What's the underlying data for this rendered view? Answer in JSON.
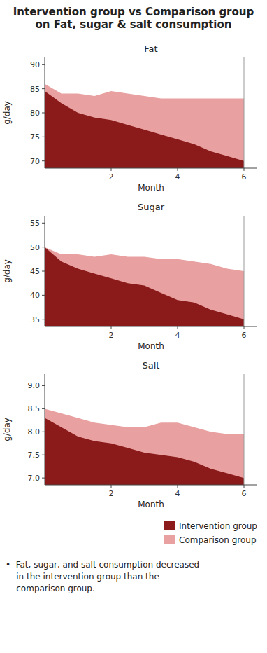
{
  "title": "Intervention group vs Comparison group\non Fat, sugar & salt consumption",
  "annotation": "•  Fat, sugar, and salt consumption decreased\n    in the intervention group than the\n    comparison group.",
  "chart_data": [
    {
      "type": "area",
      "title": "Fat",
      "x_label": "Month",
      "y_label": "g/day",
      "x": [
        0,
        0.5,
        1.0,
        1.5,
        2.0,
        2.5,
        3.0,
        3.5,
        4.0,
        4.5,
        5.0,
        5.5,
        6.0
      ],
      "series": [
        {
          "name": "Intervention group",
          "color": "#8B1A1A",
          "values": [
            84.5,
            82.0,
            80.0,
            79.0,
            78.5,
            77.5,
            76.5,
            75.5,
            74.5,
            73.5,
            72.0,
            71.0,
            70.0
          ]
        },
        {
          "name": "Comparison group",
          "color": "#E8A0A0",
          "values": [
            86.0,
            84.0,
            84.0,
            83.5,
            84.5,
            84.0,
            83.5,
            83.0,
            83.0,
            83.0,
            83.0,
            83.0,
            83.0
          ]
        }
      ],
      "vline_x": 6,
      "xlim": [
        0,
        6.4
      ],
      "xticks": [
        2,
        4,
        6
      ],
      "ylim": [
        68.5,
        91.5
      ],
      "yticks": [
        70,
        75,
        80,
        85,
        90
      ],
      "grid": false,
      "legend": "right"
    },
    {
      "type": "area",
      "title": "Sugar",
      "x_label": "Month",
      "y_label": "g/day",
      "x": [
        0,
        0.5,
        1.0,
        1.5,
        2.0,
        2.5,
        3.0,
        3.5,
        4.0,
        4.5,
        5.0,
        5.5,
        6.0
      ],
      "series": [
        {
          "color": "#8B1A1A",
          "values": [
            50.0,
            47.0,
            45.5,
            44.5,
            43.5,
            42.5,
            42.0,
            40.5,
            39.0,
            38.5,
            37.0,
            36.0,
            35.0
          ]
        },
        {
          "color": "#E8A0A0",
          "values": [
            50.0,
            48.5,
            48.5,
            48.0,
            48.5,
            48.0,
            48.0,
            47.5,
            47.5,
            47.0,
            46.5,
            45.5,
            45.0
          ]
        }
      ],
      "vline_x": 6,
      "xlim": [
        0,
        6.4
      ],
      "xticks": [
        2,
        4,
        6
      ],
      "ylim": [
        33.5,
        56.5
      ],
      "yticks": [
        35,
        40,
        45,
        50,
        55
      ],
      "grid": false
    },
    {
      "type": "area",
      "title": "Salt",
      "x_label": "Month",
      "y_label": "g/day",
      "x": [
        0,
        0.5,
        1.0,
        1.5,
        2.0,
        2.5,
        3.0,
        3.5,
        4.0,
        4.5,
        5.0,
        5.5,
        6.0
      ],
      "series": [
        {
          "color": "#8B1A1A",
          "values": [
            8.3,
            8.1,
            7.9,
            7.8,
            7.75,
            7.65,
            7.55,
            7.5,
            7.45,
            7.35,
            7.2,
            7.1,
            7.0
          ]
        },
        {
          "color": "#E8A0A0",
          "values": [
            8.5,
            8.4,
            8.3,
            8.2,
            8.15,
            8.1,
            8.1,
            8.2,
            8.2,
            8.1,
            8.0,
            7.95,
            7.95
          ]
        }
      ],
      "vline_x": 6,
      "xlim": [
        0,
        6.4
      ],
      "xticks": [
        2,
        4,
        6
      ],
      "ylim": [
        6.85,
        9.25
      ],
      "yticks": [
        {
          "value": 7.0,
          "label": "7.0"
        },
        7.5,
        {
          "value": 8.0,
          "label": "8.0"
        },
        8.5,
        {
          "value": 9.0,
          "label": "9.0"
        }
      ],
      "grid": false
    }
  ]
}
